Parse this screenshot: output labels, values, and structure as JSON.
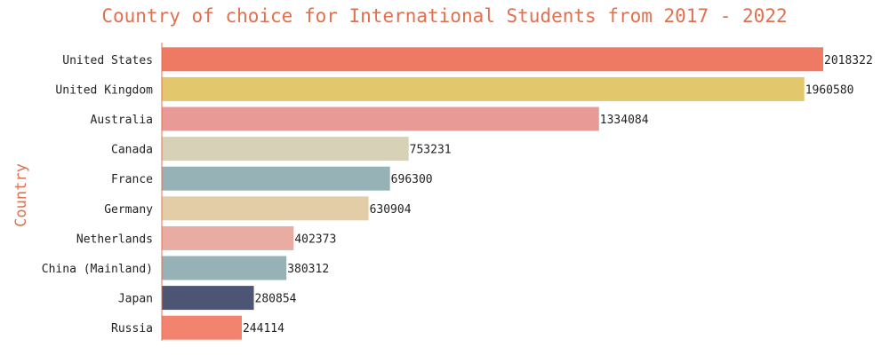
{
  "chart_data": {
    "type": "bar",
    "orientation": "horizontal",
    "title": "Country of choice for International Students from 2017 - 2022",
    "ylabel": "Country",
    "xlabel": "",
    "categories": [
      "United States",
      "United Kingdom",
      "Australia",
      "Canada",
      "France",
      "Germany",
      "Netherlands",
      "China (Mainland)",
      "Japan",
      "Russia"
    ],
    "values": [
      2018322,
      1960580,
      1334084,
      753231,
      696300,
      630904,
      402373,
      380312,
      280854,
      244114
    ],
    "value_labels": [
      "2018322",
      "1960580",
      "1334084",
      "753231",
      "696300",
      "630904",
      "402373",
      "380312",
      "280854",
      "244114"
    ],
    "xlim": [
      0,
      2018322
    ],
    "grid": false,
    "x_axis_visible": false,
    "colors": [
      "#ef7a63",
      "#e2c76c",
      "#e89b96",
      "#d6d1b7",
      "#97b2b7",
      "#e3cda7",
      "#e9aca3",
      "#97b2b7",
      "#4c5574",
      "#f2836f"
    ],
    "accent_color": "#e07050"
  }
}
